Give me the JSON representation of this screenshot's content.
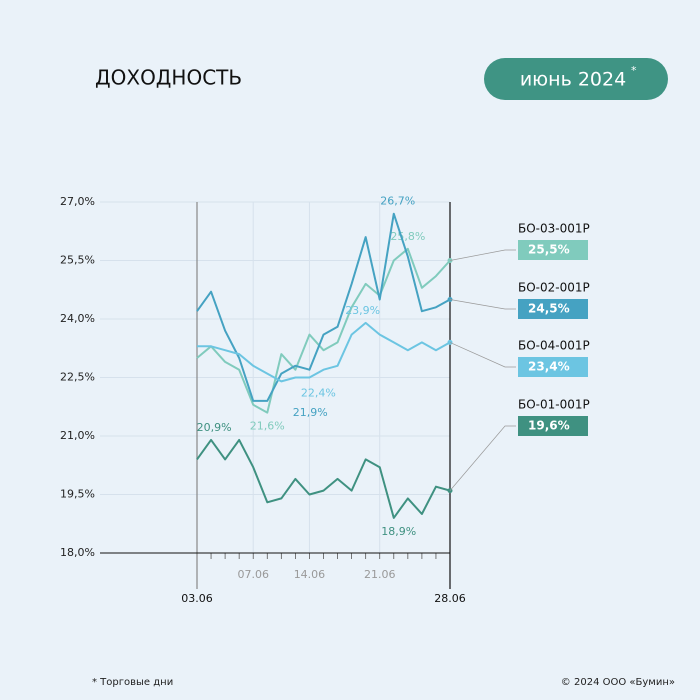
{
  "chart_data": {
    "type": "line",
    "title": "ДОХОДНОСТЬ",
    "period": "июнь 2024",
    "period_mark": "*",
    "footnote": "* Торговые дни",
    "copyright": "© 2024 ООО «Бумин»",
    "categories": [
      "03.06",
      null,
      null,
      null,
      "07.06",
      null,
      null,
      null,
      "14.06",
      null,
      null,
      null,
      null,
      "21.06",
      null,
      null,
      null,
      null,
      "28.06"
    ],
    "ylim": [
      18,
      27
    ],
    "yticks": [
      {
        "value": 18,
        "label": "18,0%"
      },
      {
        "value": 19.5,
        "label": "19,5%"
      },
      {
        "value": 21,
        "label": "21,0%"
      },
      {
        "value": 22.5,
        "label": "22,5%"
      },
      {
        "value": 24,
        "label": "24,0%"
      },
      {
        "value": 25.5,
        "label": "25,5%"
      },
      {
        "value": 27,
        "label": "27,0%"
      }
    ],
    "grid": true,
    "series": [
      {
        "name": "БО-03-001Р",
        "color": "#80cbbd",
        "end_label": "25,5%",
        "values": [
          23.0,
          23.3,
          22.9,
          22.7,
          21.8,
          21.6,
          23.1,
          22.7,
          23.6,
          23.2,
          23.4,
          24.3,
          24.9,
          24.6,
          25.5,
          25.8,
          24.8,
          25.1,
          25.5
        ],
        "value_labels": [
          null,
          null,
          null,
          null,
          null,
          "21,6%",
          null,
          null,
          null,
          null,
          null,
          null,
          null,
          null,
          null,
          "25,8%",
          null,
          null,
          null
        ]
      },
      {
        "name": "БО-02-001Р",
        "color": "#45a2c2",
        "end_label": "24,5%",
        "values": [
          24.2,
          24.7,
          23.7,
          23.0,
          21.9,
          21.9,
          22.6,
          22.8,
          22.7,
          23.6,
          23.8,
          24.9,
          26.1,
          24.5,
          26.7,
          25.6,
          24.2,
          24.3,
          24.5
        ],
        "value_labels": [
          null,
          null,
          null,
          null,
          null,
          "21,9%",
          null,
          null,
          null,
          null,
          null,
          null,
          null,
          null,
          "26,7%",
          null,
          null,
          null,
          null
        ]
      },
      {
        "name": "БО-04-001Р",
        "color": "#6cc5e2",
        "end_label": "23,4%",
        "values": [
          23.3,
          23.3,
          23.2,
          23.1,
          22.8,
          22.6,
          22.4,
          22.5,
          22.5,
          22.7,
          22.8,
          23.6,
          23.9,
          23.6,
          23.4,
          23.2,
          23.4,
          23.2,
          23.4
        ],
        "value_labels": [
          null,
          null,
          null,
          null,
          null,
          null,
          "22,4%",
          null,
          null,
          null,
          null,
          null,
          "23,9%",
          null,
          null,
          null,
          null,
          null,
          null
        ]
      },
      {
        "name": "БО-01-001Р",
        "color": "#3f9181",
        "end_label": "19,6%",
        "values": [
          20.4,
          20.9,
          20.4,
          20.9,
          20.2,
          19.3,
          19.4,
          19.9,
          19.5,
          19.6,
          19.9,
          19.6,
          20.4,
          20.2,
          18.9,
          19.4,
          19.0,
          19.7,
          19.6
        ],
        "value_labels": [
          null,
          "20,9%",
          null,
          null,
          null,
          null,
          null,
          null,
          null,
          null,
          null,
          null,
          null,
          null,
          "18,9%",
          null,
          null,
          null,
          null
        ]
      }
    ]
  }
}
